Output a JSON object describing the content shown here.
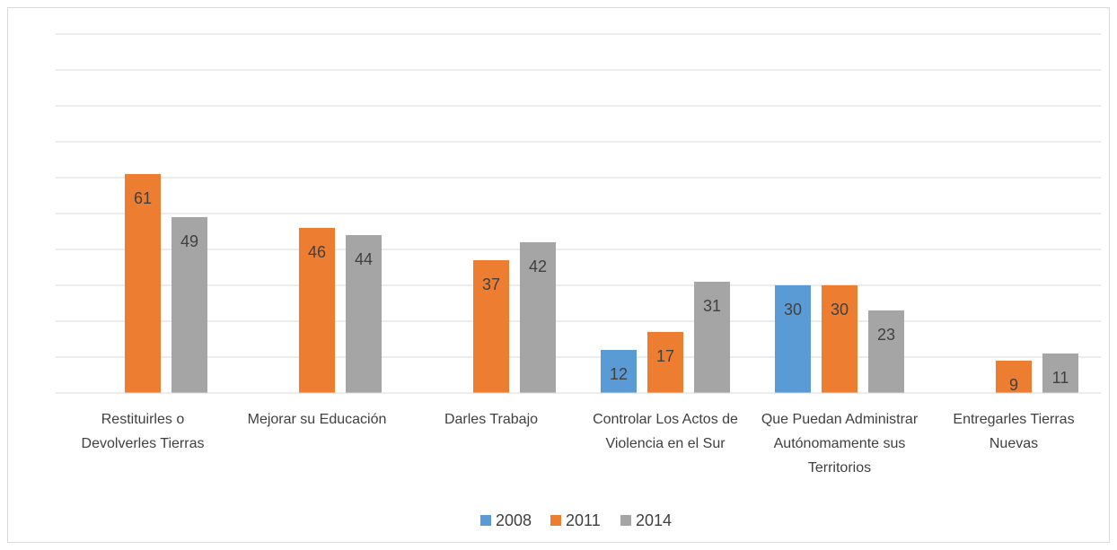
{
  "chart_data": {
    "type": "bar",
    "categories": [
      "Restituirles o Devolverles Tierras",
      "Mejorar su Educación",
      "Darles Trabajo",
      "Controlar Los Actos de Violencia en el Sur",
      "Que Puedan Administrar Autónomamente sus Territorios",
      "Entregarles Tierras Nuevas"
    ],
    "series": [
      {
        "name": "2008",
        "color": "#5b9bd5",
        "values": [
          null,
          null,
          null,
          12,
          30,
          null
        ]
      },
      {
        "name": "2011",
        "color": "#ed7d31",
        "values": [
          61,
          46,
          37,
          17,
          30,
          9
        ]
      },
      {
        "name": "2014",
        "color": "#a5a5a5",
        "values": [
          49,
          44,
          42,
          31,
          23,
          11
        ]
      }
    ],
    "ylim": [
      0,
      100
    ],
    "yticks": [
      0,
      10,
      20,
      30,
      40,
      50,
      60,
      70,
      80,
      90,
      100
    ],
    "grid": true,
    "legend": "bottom"
  }
}
